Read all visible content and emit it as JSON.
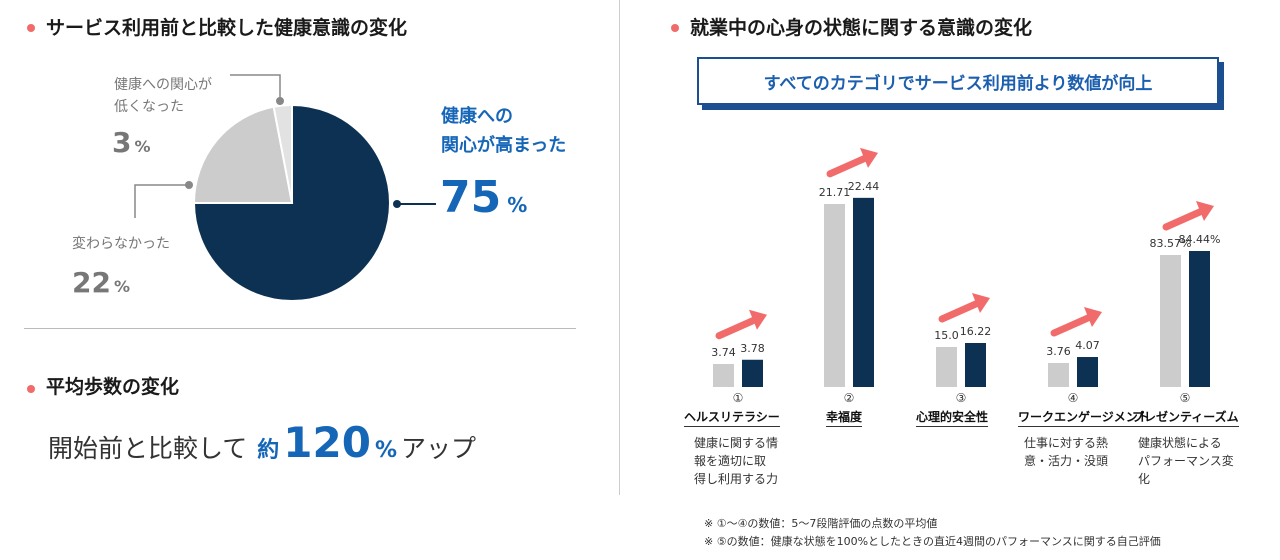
{
  "left": {
    "section1_title": "サービス利用前と比較した健康意識の変化",
    "pie_labels": {
      "decreased_line1": "健康への関心が",
      "decreased_line2": "低くなった",
      "decreased_value": "3",
      "unchanged": "変わらなかった",
      "unchanged_value": "22",
      "increased_line1": "健康への",
      "increased_line2": "関心が高まった",
      "increased_value": "75",
      "unit": "%"
    },
    "section2_title": "平均歩数の変化",
    "steps": {
      "prefix": "開始前と比較して",
      "yaku": "約",
      "value": "120",
      "unit": "%",
      "suffix": "アップ"
    }
  },
  "right": {
    "section_title": "就業中の心身の状態に関する意識の変化",
    "banner": "すべてのカテゴリでサービス利用前より数値が向上",
    "categories": [
      {
        "num": "①",
        "name": "ヘルスリテラシー",
        "desc": "健康に関する情\n報を適切に取\n得し利用する力"
      },
      {
        "num": "②",
        "name": "幸福度",
        "desc": ""
      },
      {
        "num": "③",
        "name": "心理的安全性",
        "desc": ""
      },
      {
        "num": "④",
        "name": "ワークエンゲージメント",
        "desc": "仕事に対する熱\n意・活力・没頭"
      },
      {
        "num": "⑤",
        "name": "プレゼンティーズム",
        "desc": "健康状態による\nパフォーマンス変\n化"
      }
    ],
    "notes": [
      "※ ①～④の数値：5～7段階評価の点数の平均値",
      "※ ⑤の数値：健康な状態を100%としたときの直近4週間のパフォーマンスに関する自己評価"
    ]
  },
  "colors": {
    "navy": "#0d3152",
    "gray": "#cccccc",
    "blue": "#1666b8",
    "arrow": "#f26b6b",
    "dot": "#f26b6b"
  },
  "chart_data": [
    {
      "type": "pie",
      "title": "サービス利用前と比較した健康意識の変化",
      "slices": [
        {
          "label": "健康への関心が高まった",
          "value": 75,
          "color": "#0d3152"
        },
        {
          "label": "変わらなかった",
          "value": 22,
          "color": "#cccccc"
        },
        {
          "label": "健康への関心が低くなった",
          "value": 3,
          "color": "#e2e2e2"
        }
      ]
    },
    {
      "type": "bar",
      "title": "就業中の心身の状態に関する意識の変化",
      "categories": [
        "ヘルスリテラシー",
        "幸福度",
        "心理的安全性",
        "ワークエンゲージメント",
        "プレゼンティーズム"
      ],
      "series": [
        {
          "values": [
            3.74,
            21.71,
            15.0,
            3.76,
            83.57
          ],
          "labels": [
            "3.74",
            "21.71",
            "15.0",
            "3.76",
            "83.57%"
          ],
          "color": "#cccccc"
        },
        {
          "values": [
            3.78,
            22.44,
            16.22,
            4.07,
            84.44
          ],
          "labels": [
            "3.78",
            "22.44",
            "16.22",
            "4.07",
            "84.44%"
          ],
          "color": "#0d3152"
        }
      ]
    }
  ]
}
